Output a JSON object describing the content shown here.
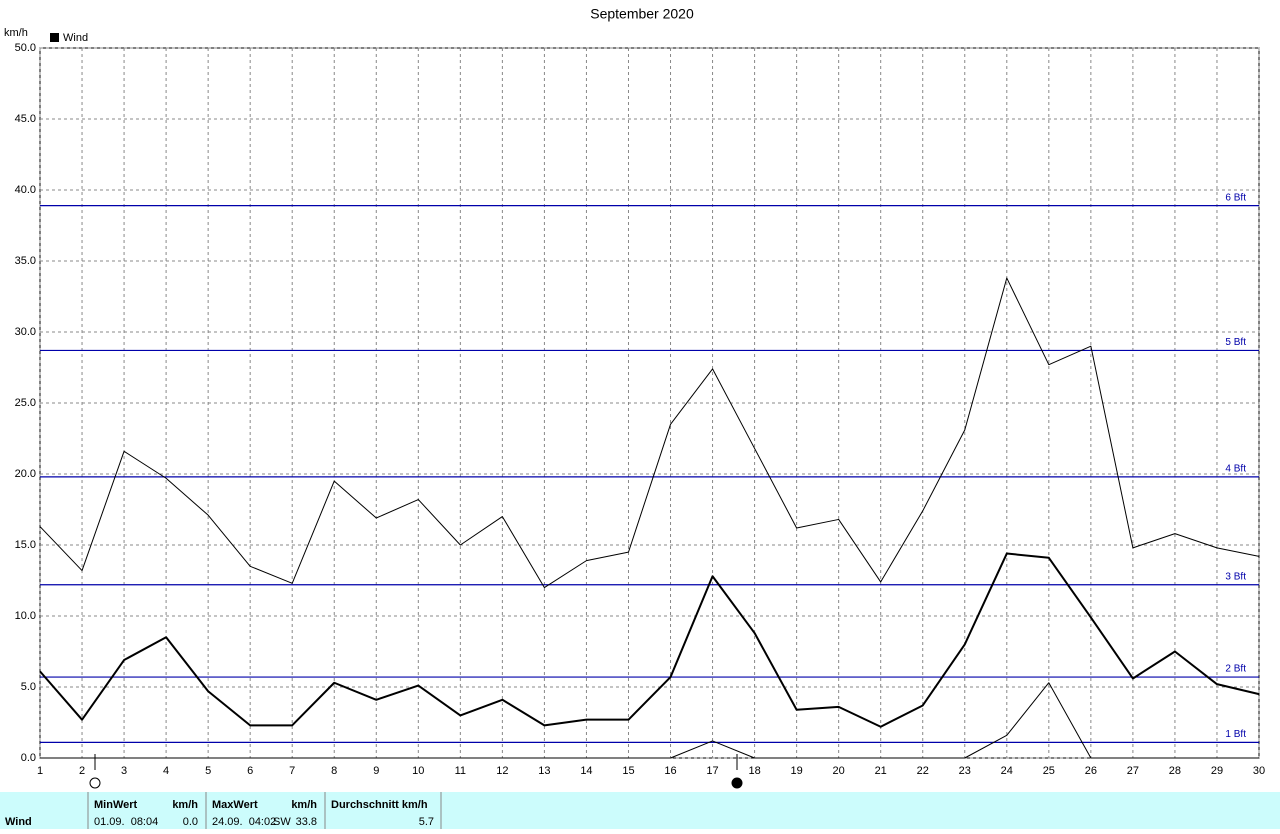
{
  "chart_data": {
    "type": "line",
    "title": "September 2020",
    "y_label": "km/h",
    "legend": "Wind",
    "legend_color": "#000000",
    "x": [
      1,
      2,
      3,
      4,
      5,
      6,
      7,
      8,
      9,
      10,
      11,
      12,
      13,
      14,
      15,
      16,
      17,
      18,
      19,
      20,
      21,
      22,
      23,
      24,
      25,
      26,
      27,
      28,
      29,
      30
    ],
    "xlim": [
      1,
      30
    ],
    "xticks": [
      1,
      2,
      3,
      4,
      5,
      6,
      7,
      8,
      9,
      10,
      11,
      12,
      13,
      14,
      15,
      16,
      17,
      18,
      19,
      20,
      21,
      22,
      23,
      24,
      25,
      26,
      27,
      28,
      29,
      30
    ],
    "ylim": [
      0,
      50
    ],
    "yticks": [
      {
        "value": 0,
        "label": "0.0"
      },
      {
        "value": 5,
        "label": "5.0"
      },
      {
        "value": 10,
        "label": "10.0"
      },
      {
        "value": 15,
        "label": "15.0"
      },
      {
        "value": 20,
        "label": "20.0"
      },
      {
        "value": 25,
        "label": "25.0"
      },
      {
        "value": 30,
        "label": "30.0"
      },
      {
        "value": 35,
        "label": "35.0"
      },
      {
        "value": 40,
        "label": "40.0"
      },
      {
        "value": 45,
        "label": "45.0"
      },
      {
        "value": 50,
        "label": "50.0"
      }
    ],
    "grid": true,
    "series": [
      {
        "color": "#000000",
        "line_width": 1,
        "values": [
          16.3,
          13.2,
          21.6,
          19.7,
          17.1,
          13.5,
          12.3,
          19.5,
          16.9,
          18.2,
          15.0,
          17.0,
          12.0,
          13.9,
          14.5,
          23.5,
          27.4,
          21.8,
          16.2,
          16.8,
          12.4,
          17.4,
          23.1,
          33.8,
          27.7,
          29.0,
          14.8,
          15.8,
          14.8,
          14.2
        ]
      },
      {
        "color": "#000000",
        "line_width": 2,
        "values": [
          6.1,
          2.7,
          6.9,
          8.5,
          4.7,
          2.3,
          2.3,
          5.3,
          4.1,
          5.1,
          3.0,
          4.1,
          2.3,
          2.7,
          2.7,
          5.7,
          12.8,
          8.8,
          3.4,
          3.6,
          2.2,
          3.7,
          8.0,
          14.4,
          14.1,
          9.9,
          5.6,
          7.5,
          5.2,
          4.5
        ]
      },
      {
        "color": "#000000",
        "line_width": 1,
        "values": [
          0,
          0,
          0,
          0,
          0,
          0,
          0,
          0,
          0,
          0,
          0,
          0,
          0,
          0,
          0,
          0,
          1.2,
          0,
          0,
          0,
          0,
          0,
          0,
          1.6,
          5.3,
          0,
          0,
          0,
          0,
          0
        ]
      }
    ],
    "reference_lines": {
      "color": "#0000aa",
      "lines": [
        {
          "value": 1.1,
          "label": "1 Bft"
        },
        {
          "value": 5.7,
          "label": "2 Bft"
        },
        {
          "value": 12.2,
          "label": "3 Bft"
        },
        {
          "value": 19.8,
          "label": "4 Bft"
        },
        {
          "value": 28.7,
          "label": "5 Bft"
        },
        {
          "value": 38.9,
          "label": "6 Bft"
        }
      ]
    }
  },
  "stats": {
    "row_label": "Wind",
    "min": {
      "header": "MinWert",
      "unit": "km/h",
      "date": "01.09.  08:04",
      "value": "0.0"
    },
    "max": {
      "header": "MaxWert",
      "unit": "km/h",
      "date": "24.09.  04:02",
      "direction": "SW",
      "value": "33.8"
    },
    "avg": {
      "header": "Durchschnitt km/h",
      "value": "5.7"
    }
  }
}
